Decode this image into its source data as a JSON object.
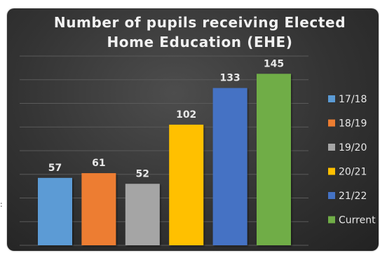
{
  "chart_data": {
    "type": "bar",
    "title_lines": [
      "Number of pupils receiving Elected",
      "Home Education (EHE)"
    ],
    "categories": [
      "17/18",
      "18/19",
      "19/20",
      "20/21",
      "21/22",
      "Current"
    ],
    "values": [
      57,
      61,
      52,
      102,
      133,
      145
    ],
    "colors": [
      "#5b9bd5",
      "#ed7d31",
      "#a5a5a5",
      "#ffc000",
      "#4472c4",
      "#70ad47"
    ],
    "ylim": [
      0,
      160
    ],
    "grid": true,
    "legend": "right",
    "xlabel": "",
    "ylabel": ""
  }
}
